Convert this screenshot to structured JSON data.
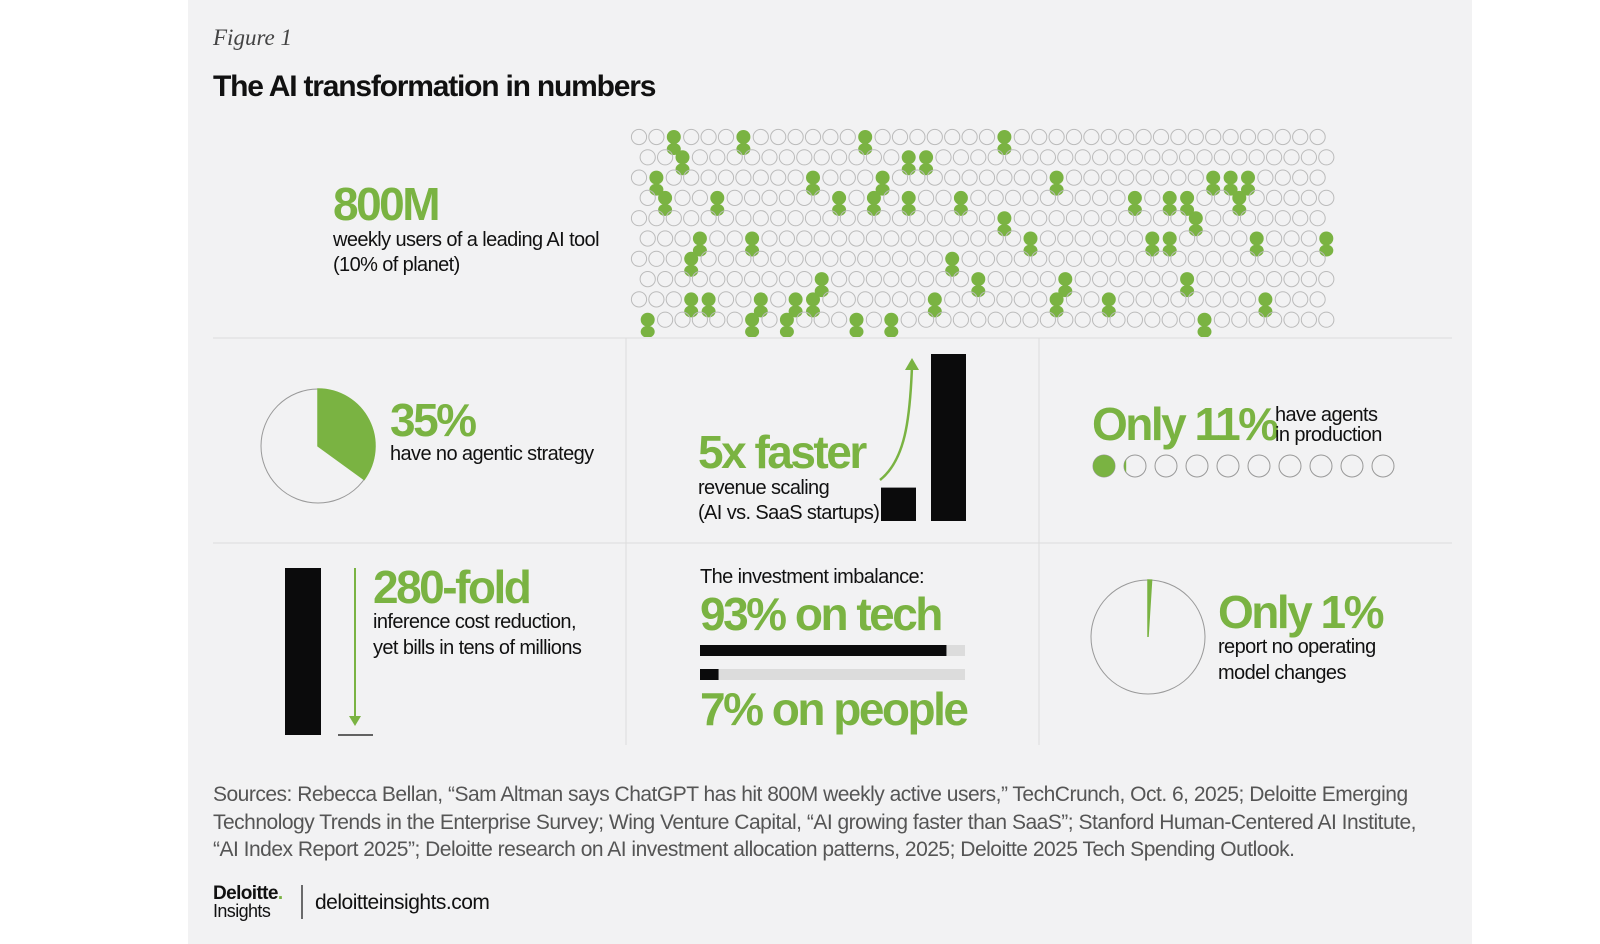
{
  "figure_label": "Figure 1",
  "title": "The AI transformation in numbers",
  "stats": {
    "users": {
      "headline": "800M",
      "lines": [
        "weekly users of a leading AI tool",
        "(10% of planet)"
      ]
    },
    "strategy": {
      "headline": "35%",
      "value": 35,
      "lines": [
        "have no agentic strategy"
      ]
    },
    "growth": {
      "headline": "5x faster",
      "lines": [
        "revenue scaling",
        "(AI vs. SaaS startups)"
      ],
      "bars": [
        1,
        5
      ]
    },
    "agents": {
      "headline": "Only 11%",
      "value": 11,
      "lines": [
        "have agents",
        "in production"
      ]
    },
    "cost": {
      "headline": "280-fold",
      "lines": [
        "inference cost reduction,",
        "yet bills in tens of millions"
      ]
    },
    "investment": {
      "intro": "The investment imbalance:",
      "tech": {
        "label": "93% on tech",
        "value": 93
      },
      "people": {
        "label": "7% on people",
        "value": 7
      }
    },
    "operating": {
      "headline": "Only 1%",
      "value": 1,
      "lines": [
        "report no operating",
        "model changes"
      ]
    }
  },
  "sources": [
    "Sources: Rebecca Bellan, “Sam Altman says ChatGPT has hit 800M weekly active users,” TechCrunch, Oct. 6, 2025; Deloitte Emerging",
    "Technology Trends in the Enterprise Survey; Wing Venture Capital, “AI growing faster than SaaS”; Stanford Human-Centered AI Institute,",
    "“AI Index Report 2025”; Deloitte research on AI investment allocation patterns, 2025; Deloitte 2025 Tech Spending Outlook."
  ],
  "footer": {
    "brand": "Deloitte",
    "brand_dot": ".",
    "sub": "Insights",
    "url": "deloitteinsights.com"
  }
}
